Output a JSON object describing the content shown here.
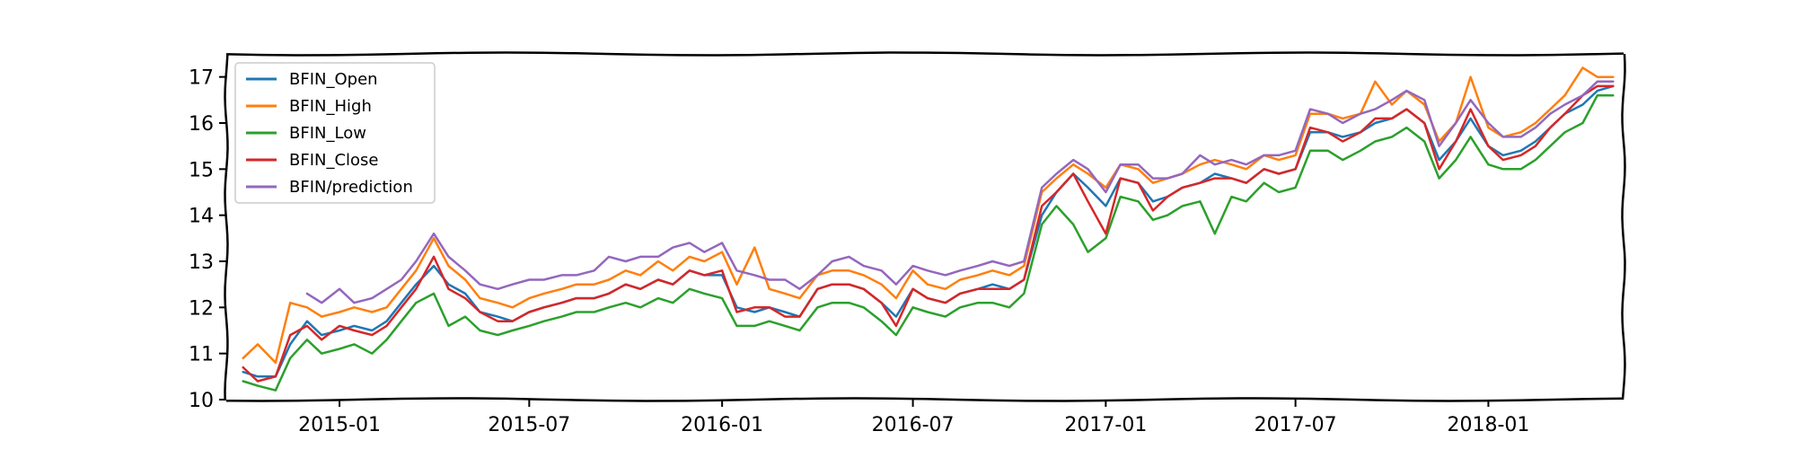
{
  "chart_data": {
    "type": "line",
    "title": "",
    "xlabel": "",
    "ylabel": "",
    "ylim": [
      10,
      17.5
    ],
    "xlim": [
      "2014-09-15",
      "2018-05-10"
    ],
    "grid": false,
    "legend_position": "top-left",
    "y_ticks": [
      "10",
      "11",
      "12",
      "13",
      "14",
      "15",
      "16",
      "17"
    ],
    "x_ticks": [
      "2015-01",
      "2015-07",
      "2016-01",
      "2016-07",
      "2017-01",
      "2017-07",
      "2018-01"
    ],
    "series": [
      {
        "name": "BFIN_Open",
        "color": "#1f77b4",
        "x": [
          "2014-10-01",
          "2014-10-15",
          "2014-11-01",
          "2014-11-15",
          "2014-12-01",
          "2014-12-15",
          "2015-01-01",
          "2015-01-15",
          "2015-02-01",
          "2015-02-15",
          "2015-03-01",
          "2015-03-15",
          "2015-04-01",
          "2015-04-15",
          "2015-05-01",
          "2015-05-15",
          "2015-06-01",
          "2015-06-15",
          "2015-07-01",
          "2015-07-15",
          "2015-08-01",
          "2015-08-15",
          "2015-09-01",
          "2015-09-15",
          "2015-10-01",
          "2015-10-15",
          "2015-11-01",
          "2015-11-15",
          "2015-12-01",
          "2015-12-15",
          "2016-01-01",
          "2016-01-15",
          "2016-02-01",
          "2016-02-15",
          "2016-03-01",
          "2016-03-15",
          "2016-04-01",
          "2016-04-15",
          "2016-05-01",
          "2016-05-15",
          "2016-06-01",
          "2016-06-15",
          "2016-07-01",
          "2016-07-15",
          "2016-08-01",
          "2016-08-15",
          "2016-09-01",
          "2016-09-15",
          "2016-10-01",
          "2016-10-15",
          "2016-11-01",
          "2016-11-15",
          "2016-12-01",
          "2016-12-15",
          "2017-01-01",
          "2017-01-15",
          "2017-02-01",
          "2017-02-15",
          "2017-03-01",
          "2017-03-15",
          "2017-04-01",
          "2017-04-15",
          "2017-05-01",
          "2017-05-15",
          "2017-06-01",
          "2017-06-15",
          "2017-07-01",
          "2017-07-15",
          "2017-08-01",
          "2017-08-15",
          "2017-09-01",
          "2017-09-15",
          "2017-10-01",
          "2017-10-15",
          "2017-11-01",
          "2017-11-15",
          "2017-12-01",
          "2017-12-15",
          "2018-01-01",
          "2018-01-15",
          "2018-02-01",
          "2018-02-15",
          "2018-03-01",
          "2018-03-15",
          "2018-04-01",
          "2018-04-15",
          "2018-04-30"
        ],
        "values": [
          10.6,
          10.5,
          10.5,
          11.2,
          11.7,
          11.4,
          11.5,
          11.6,
          11.5,
          11.7,
          12.1,
          12.5,
          12.9,
          12.5,
          12.3,
          11.9,
          11.8,
          11.7,
          11.9,
          12.0,
          12.1,
          12.2,
          12.2,
          12.3,
          12.5,
          12.4,
          12.6,
          12.5,
          12.8,
          12.7,
          12.7,
          12.0,
          11.9,
          12.0,
          11.9,
          11.8,
          12.4,
          12.5,
          12.5,
          12.4,
          12.1,
          11.8,
          12.4,
          12.2,
          12.1,
          12.3,
          12.4,
          12.5,
          12.4,
          12.6,
          14.0,
          14.5,
          14.9,
          14.6,
          14.2,
          14.8,
          14.7,
          14.3,
          14.4,
          14.6,
          14.7,
          14.9,
          14.8,
          14.7,
          15.0,
          14.9,
          15.0,
          15.8,
          15.8,
          15.7,
          15.8,
          16.0,
          16.1,
          16.3,
          16.0,
          15.2,
          15.6,
          16.1,
          15.5,
          15.3,
          15.4,
          15.6,
          15.9,
          16.2,
          16.4,
          16.7,
          16.8
        ]
      },
      {
        "name": "BFIN_High",
        "color": "#ff7f0e",
        "x": [
          "2014-10-01",
          "2014-10-15",
          "2014-11-01",
          "2014-11-15",
          "2014-12-01",
          "2014-12-15",
          "2015-01-01",
          "2015-01-15",
          "2015-02-01",
          "2015-02-15",
          "2015-03-01",
          "2015-03-15",
          "2015-04-01",
          "2015-04-15",
          "2015-05-01",
          "2015-05-15",
          "2015-06-01",
          "2015-06-15",
          "2015-07-01",
          "2015-07-15",
          "2015-08-01",
          "2015-08-15",
          "2015-09-01",
          "2015-09-15",
          "2015-10-01",
          "2015-10-15",
          "2015-11-01",
          "2015-11-15",
          "2015-12-01",
          "2015-12-15",
          "2016-01-01",
          "2016-01-15",
          "2016-02-01",
          "2016-02-15",
          "2016-03-01",
          "2016-03-15",
          "2016-04-01",
          "2016-04-15",
          "2016-05-01",
          "2016-05-15",
          "2016-06-01",
          "2016-06-15",
          "2016-07-01",
          "2016-07-15",
          "2016-08-01",
          "2016-08-15",
          "2016-09-01",
          "2016-09-15",
          "2016-10-01",
          "2016-10-15",
          "2016-11-01",
          "2016-11-15",
          "2016-12-01",
          "2016-12-15",
          "2017-01-01",
          "2017-01-15",
          "2017-02-01",
          "2017-02-15",
          "2017-03-01",
          "2017-03-15",
          "2017-04-01",
          "2017-04-15",
          "2017-05-01",
          "2017-05-15",
          "2017-06-01",
          "2017-06-15",
          "2017-07-01",
          "2017-07-15",
          "2017-08-01",
          "2017-08-15",
          "2017-09-01",
          "2017-09-15",
          "2017-10-01",
          "2017-10-15",
          "2017-11-01",
          "2017-11-15",
          "2017-12-01",
          "2017-12-15",
          "2018-01-01",
          "2018-01-15",
          "2018-02-01",
          "2018-02-15",
          "2018-03-01",
          "2018-03-15",
          "2018-04-01",
          "2018-04-15",
          "2018-04-30"
        ],
        "values": [
          10.9,
          11.2,
          10.8,
          12.1,
          12.0,
          11.8,
          11.9,
          12.0,
          11.9,
          12.0,
          12.4,
          12.8,
          13.5,
          12.9,
          12.6,
          12.2,
          12.1,
          12.0,
          12.2,
          12.3,
          12.4,
          12.5,
          12.5,
          12.6,
          12.8,
          12.7,
          13.0,
          12.8,
          13.1,
          13.0,
          13.2,
          12.5,
          13.3,
          12.4,
          12.3,
          12.2,
          12.7,
          12.8,
          12.8,
          12.7,
          12.5,
          12.2,
          12.8,
          12.5,
          12.4,
          12.6,
          12.7,
          12.8,
          12.7,
          12.9,
          14.5,
          14.8,
          15.1,
          14.9,
          14.6,
          15.1,
          15.0,
          14.7,
          14.8,
          14.9,
          15.1,
          15.2,
          15.1,
          15.0,
          15.3,
          15.2,
          15.3,
          16.2,
          16.2,
          16.1,
          16.2,
          16.9,
          16.4,
          16.7,
          16.4,
          15.6,
          16.0,
          17.0,
          15.9,
          15.7,
          15.8,
          16.0,
          16.3,
          16.6,
          17.2,
          17.0,
          17.0
        ]
      },
      {
        "name": "BFIN_Low",
        "color": "#2ca02c",
        "x": [
          "2014-10-01",
          "2014-10-15",
          "2014-11-01",
          "2014-11-15",
          "2014-12-01",
          "2014-12-15",
          "2015-01-01",
          "2015-01-15",
          "2015-02-01",
          "2015-02-15",
          "2015-03-01",
          "2015-03-15",
          "2015-04-01",
          "2015-04-15",
          "2015-05-01",
          "2015-05-15",
          "2015-06-01",
          "2015-06-15",
          "2015-07-01",
          "2015-07-15",
          "2015-08-01",
          "2015-08-15",
          "2015-09-01",
          "2015-09-15",
          "2015-10-01",
          "2015-10-15",
          "2015-11-01",
          "2015-11-15",
          "2015-12-01",
          "2015-12-15",
          "2016-01-01",
          "2016-01-15",
          "2016-02-01",
          "2016-02-15",
          "2016-03-01",
          "2016-03-15",
          "2016-04-01",
          "2016-04-15",
          "2016-05-01",
          "2016-05-15",
          "2016-06-01",
          "2016-06-15",
          "2016-07-01",
          "2016-07-15",
          "2016-08-01",
          "2016-08-15",
          "2016-09-01",
          "2016-09-15",
          "2016-10-01",
          "2016-10-15",
          "2016-11-01",
          "2016-11-15",
          "2016-12-01",
          "2016-12-15",
          "2017-01-01",
          "2017-01-15",
          "2017-02-01",
          "2017-02-15",
          "2017-03-01",
          "2017-03-15",
          "2017-04-01",
          "2017-04-15",
          "2017-05-01",
          "2017-05-15",
          "2017-06-01",
          "2017-06-15",
          "2017-07-01",
          "2017-07-15",
          "2017-08-01",
          "2017-08-15",
          "2017-09-01",
          "2017-09-15",
          "2017-10-01",
          "2017-10-15",
          "2017-11-01",
          "2017-11-15",
          "2017-12-01",
          "2017-12-15",
          "2018-01-01",
          "2018-01-15",
          "2018-02-01",
          "2018-02-15",
          "2018-03-01",
          "2018-03-15",
          "2018-04-01",
          "2018-04-15",
          "2018-04-30"
        ],
        "values": [
          10.4,
          10.3,
          10.2,
          10.9,
          11.3,
          11.0,
          11.1,
          11.2,
          11.0,
          11.3,
          11.7,
          12.1,
          12.3,
          11.6,
          11.8,
          11.5,
          11.4,
          11.5,
          11.6,
          11.7,
          11.8,
          11.9,
          11.9,
          12.0,
          12.1,
          12.0,
          12.2,
          12.1,
          12.4,
          12.3,
          12.2,
          11.6,
          11.6,
          11.7,
          11.6,
          11.5,
          12.0,
          12.1,
          12.1,
          12.0,
          11.7,
          11.4,
          12.0,
          11.9,
          11.8,
          12.0,
          12.1,
          12.1,
          12.0,
          12.3,
          13.8,
          14.2,
          13.8,
          13.2,
          13.5,
          14.4,
          14.3,
          13.9,
          14.0,
          14.2,
          14.3,
          13.6,
          14.4,
          14.3,
          14.7,
          14.5,
          14.6,
          15.4,
          15.4,
          15.2,
          15.4,
          15.6,
          15.7,
          15.9,
          15.6,
          14.8,
          15.2,
          15.7,
          15.1,
          15.0,
          15.0,
          15.2,
          15.5,
          15.8,
          16.0,
          16.6,
          16.6
        ]
      },
      {
        "name": "BFIN_Close",
        "color": "#d62728",
        "x": [
          "2014-10-01",
          "2014-10-15",
          "2014-11-01",
          "2014-11-15",
          "2014-12-01",
          "2014-12-15",
          "2015-01-01",
          "2015-01-15",
          "2015-02-01",
          "2015-02-15",
          "2015-03-01",
          "2015-03-15",
          "2015-04-01",
          "2015-04-15",
          "2015-05-01",
          "2015-05-15",
          "2015-06-01",
          "2015-06-15",
          "2015-07-01",
          "2015-07-15",
          "2015-08-01",
          "2015-08-15",
          "2015-09-01",
          "2015-09-15",
          "2015-10-01",
          "2015-10-15",
          "2015-11-01",
          "2015-11-15",
          "2015-12-01",
          "2015-12-15",
          "2016-01-01",
          "2016-01-15",
          "2016-02-01",
          "2016-02-15",
          "2016-03-01",
          "2016-03-15",
          "2016-04-01",
          "2016-04-15",
          "2016-05-01",
          "2016-05-15",
          "2016-06-01",
          "2016-06-15",
          "2016-07-01",
          "2016-07-15",
          "2016-08-01",
          "2016-08-15",
          "2016-09-01",
          "2016-09-15",
          "2016-10-01",
          "2016-10-15",
          "2016-11-01",
          "2016-11-15",
          "2016-12-01",
          "2016-12-15",
          "2017-01-01",
          "2017-01-15",
          "2017-02-01",
          "2017-02-15",
          "2017-03-01",
          "2017-03-15",
          "2017-04-01",
          "2017-04-15",
          "2017-05-01",
          "2017-05-15",
          "2017-06-01",
          "2017-06-15",
          "2017-07-01",
          "2017-07-15",
          "2017-08-01",
          "2017-08-15",
          "2017-09-01",
          "2017-09-15",
          "2017-10-01",
          "2017-10-15",
          "2017-11-01",
          "2017-11-15",
          "2017-12-01",
          "2017-12-15",
          "2018-01-01",
          "2018-01-15",
          "2018-02-01",
          "2018-02-15",
          "2018-03-01",
          "2018-03-15",
          "2018-04-01",
          "2018-04-15",
          "2018-04-30"
        ],
        "values": [
          10.7,
          10.4,
          10.5,
          11.4,
          11.6,
          11.3,
          11.6,
          11.5,
          11.4,
          11.6,
          12.0,
          12.4,
          13.1,
          12.4,
          12.2,
          11.9,
          11.7,
          11.7,
          11.9,
          12.0,
          12.1,
          12.2,
          12.2,
          12.3,
          12.5,
          12.4,
          12.6,
          12.5,
          12.8,
          12.7,
          12.8,
          11.9,
          12.0,
          12.0,
          11.8,
          11.8,
          12.4,
          12.5,
          12.5,
          12.4,
          12.1,
          11.6,
          12.4,
          12.2,
          12.1,
          12.3,
          12.4,
          12.4,
          12.4,
          12.6,
          14.2,
          14.5,
          14.9,
          14.3,
          13.6,
          14.8,
          14.7,
          14.1,
          14.4,
          14.6,
          14.7,
          14.8,
          14.8,
          14.7,
          15.0,
          14.9,
          15.0,
          15.9,
          15.8,
          15.6,
          15.8,
          16.1,
          16.1,
          16.3,
          16.0,
          15.0,
          15.6,
          16.3,
          15.5,
          15.2,
          15.3,
          15.5,
          15.9,
          16.2,
          16.6,
          16.8,
          16.8
        ]
      },
      {
        "name": "BFIN/prediction",
        "color": "#9467bd",
        "x": [
          "2014-12-01",
          "2014-12-15",
          "2015-01-01",
          "2015-01-15",
          "2015-02-01",
          "2015-02-15",
          "2015-03-01",
          "2015-03-15",
          "2015-04-01",
          "2015-04-15",
          "2015-05-01",
          "2015-05-15",
          "2015-06-01",
          "2015-06-15",
          "2015-07-01",
          "2015-07-15",
          "2015-08-01",
          "2015-08-15",
          "2015-09-01",
          "2015-09-15",
          "2015-10-01",
          "2015-10-15",
          "2015-11-01",
          "2015-11-15",
          "2015-12-01",
          "2015-12-15",
          "2016-01-01",
          "2016-01-15",
          "2016-02-01",
          "2016-02-15",
          "2016-03-01",
          "2016-03-15",
          "2016-04-01",
          "2016-04-15",
          "2016-05-01",
          "2016-05-15",
          "2016-06-01",
          "2016-06-15",
          "2016-07-01",
          "2016-07-15",
          "2016-08-01",
          "2016-08-15",
          "2016-09-01",
          "2016-09-15",
          "2016-10-01",
          "2016-10-15",
          "2016-11-01",
          "2016-11-15",
          "2016-12-01",
          "2016-12-15",
          "2017-01-01",
          "2017-01-15",
          "2017-02-01",
          "2017-02-15",
          "2017-03-01",
          "2017-03-15",
          "2017-04-01",
          "2017-04-15",
          "2017-05-01",
          "2017-05-15",
          "2017-06-01",
          "2017-06-15",
          "2017-07-01",
          "2017-07-15",
          "2017-08-01",
          "2017-08-15",
          "2017-09-01",
          "2017-09-15",
          "2017-10-01",
          "2017-10-15",
          "2017-11-01",
          "2017-11-15",
          "2017-12-01",
          "2017-12-15",
          "2018-01-01",
          "2018-01-15",
          "2018-02-01",
          "2018-02-15",
          "2018-03-01",
          "2018-03-15",
          "2018-04-01",
          "2018-04-15",
          "2018-04-30"
        ],
        "values": [
          12.3,
          12.1,
          12.4,
          12.1,
          12.2,
          12.4,
          12.6,
          13.0,
          13.6,
          13.1,
          12.8,
          12.5,
          12.4,
          12.5,
          12.6,
          12.6,
          12.7,
          12.7,
          12.8,
          13.1,
          13.0,
          13.1,
          13.1,
          13.3,
          13.4,
          13.2,
          13.4,
          12.8,
          12.7,
          12.6,
          12.6,
          12.4,
          12.7,
          13.0,
          13.1,
          12.9,
          12.8,
          12.5,
          12.9,
          12.8,
          12.7,
          12.8,
          12.9,
          13.0,
          12.9,
          13.0,
          14.6,
          14.9,
          15.2,
          15.0,
          14.5,
          15.1,
          15.1,
          14.8,
          14.8,
          14.9,
          15.3,
          15.1,
          15.2,
          15.1,
          15.3,
          15.3,
          15.4,
          16.3,
          16.2,
          16.0,
          16.2,
          16.3,
          16.5,
          16.7,
          16.5,
          15.5,
          16.0,
          16.5,
          16.0,
          15.7,
          15.7,
          15.9,
          16.2,
          16.4,
          16.6,
          16.9,
          16.9
        ]
      }
    ]
  }
}
